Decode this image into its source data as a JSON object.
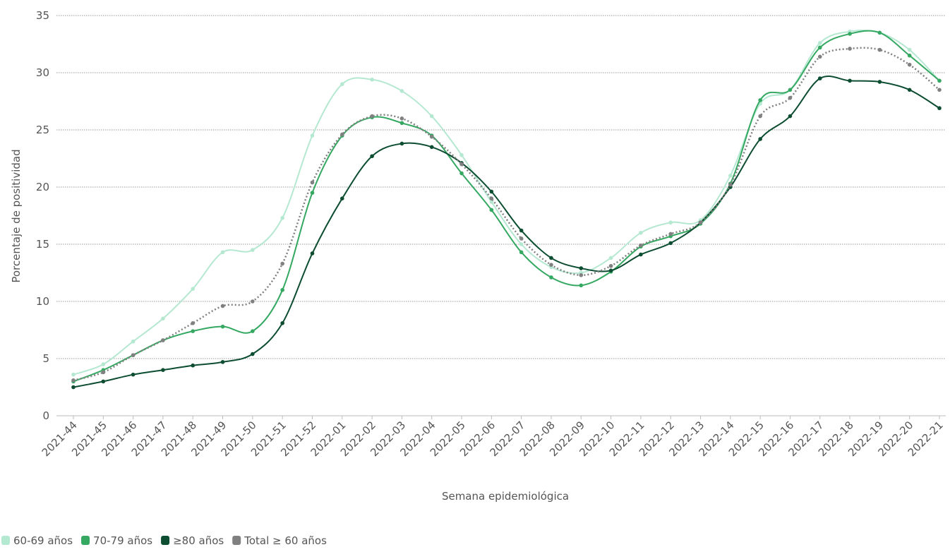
{
  "chart_data": {
    "type": "line",
    "x_label": "Semana epidemiológica",
    "y_label": "Porcentaje de positividad",
    "categories": [
      "2021-44",
      "2021-45",
      "2021-46",
      "2021-47",
      "2021-48",
      "2021-49",
      "2021-50",
      "2021-51",
      "2021-52",
      "2022-01",
      "2022-02",
      "2022-03",
      "2022-04",
      "2022-05",
      "2022-06",
      "2022-07",
      "2022-08",
      "2022-09",
      "2022-10",
      "2022-11",
      "2022-12",
      "2022-13",
      "2022-14",
      "2022-15",
      "2022-16",
      "2022-17",
      "2022-18",
      "2022-19",
      "2022-20",
      "2022-21"
    ],
    "series": [
      {
        "name": "60-69 años",
        "color": "#b5e8d1",
        "dash": false,
        "values": [
          3.6,
          4.5,
          6.5,
          8.5,
          11.1,
          14.3,
          14.5,
          17.3,
          24.5,
          29.0,
          29.4,
          28.4,
          26.2,
          22.8,
          18.7,
          15.0,
          13.0,
          12.5,
          13.8,
          16.0,
          16.9,
          17.1,
          21.0,
          27.3,
          28.5,
          32.6,
          33.6,
          33.5,
          32.0,
          29.3
        ]
      },
      {
        "name": "70-79 años",
        "color": "#35a862",
        "dash": false,
        "values": [
          3.0,
          4.0,
          5.3,
          6.6,
          7.4,
          7.8,
          7.4,
          11.0,
          19.5,
          24.5,
          26.1,
          25.6,
          24.5,
          21.2,
          18.0,
          14.3,
          12.1,
          11.4,
          12.6,
          14.8,
          15.7,
          16.8,
          20.3,
          27.6,
          28.5,
          32.2,
          33.4,
          33.5,
          31.5,
          29.3
        ]
      },
      {
        "name": "≥80 años",
        "color": "#0d4d31",
        "dash": false,
        "values": [
          2.5,
          3.0,
          3.6,
          4.0,
          4.4,
          4.7,
          5.4,
          8.1,
          14.2,
          19.0,
          22.7,
          23.8,
          23.5,
          22.1,
          19.6,
          16.2,
          13.8,
          12.9,
          12.7,
          14.1,
          15.1,
          16.9,
          20.0,
          24.2,
          26.2,
          29.5,
          29.3,
          29.2,
          28.5,
          26.9
        ]
      },
      {
        "name": "Total ≥ 60 años",
        "color": "#808080",
        "dash": true,
        "values": [
          3.1,
          3.8,
          5.3,
          6.6,
          8.1,
          9.6,
          10.0,
          13.3,
          20.4,
          24.6,
          26.2,
          26.0,
          24.4,
          22.0,
          19.0,
          15.5,
          13.2,
          12.3,
          13.1,
          14.9,
          15.9,
          16.9,
          20.2,
          26.2,
          27.8,
          31.4,
          32.1,
          32.0,
          30.7,
          28.5
        ]
      }
    ],
    "ylim": [
      0,
      35
    ],
    "yticks": [
      0,
      5,
      10,
      15,
      20,
      25,
      30,
      35
    ],
    "grid": true
  }
}
